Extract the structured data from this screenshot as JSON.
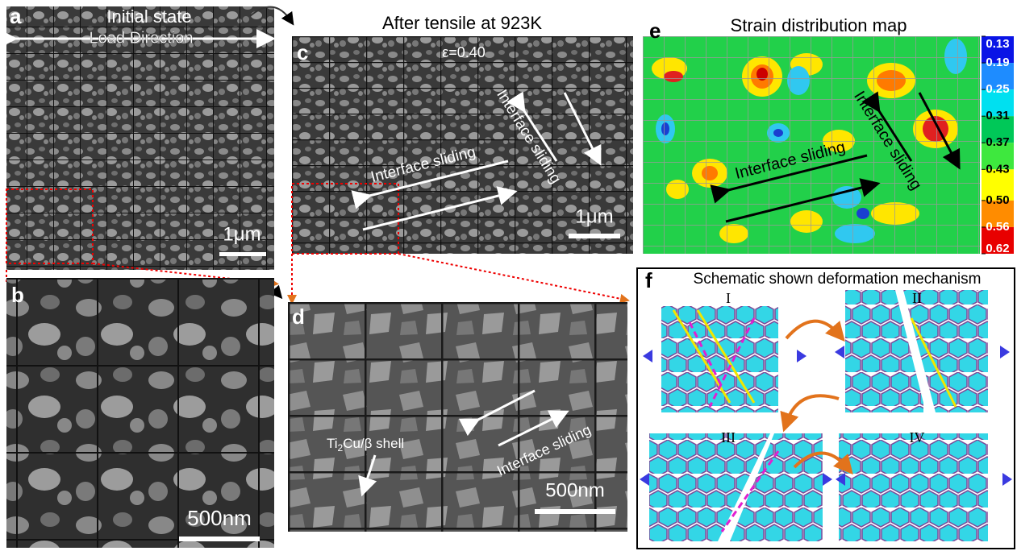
{
  "a": {
    "label": "a",
    "title": "Initial state",
    "arrow": "Load Direction",
    "scale": "1μm"
  },
  "b": {
    "label": "b",
    "scale": "500nm"
  },
  "c": {
    "label": "c",
    "title": "After tensile at 923K",
    "strain": "ε=0.40",
    "annotations": [
      "Interface sliding",
      "Interface sliding"
    ],
    "scale": "1μm"
  },
  "d": {
    "label": "d",
    "phase": {
      "parts": [
        "Ti",
        "2",
        "Cu/β shell"
      ]
    },
    "annotation": "Interface sliding",
    "scale": "500nm"
  },
  "e": {
    "label": "e",
    "title": "Strain distribution map",
    "annotations": [
      "Interface sliding",
      "Interface sliding"
    ],
    "colorbar_ticks": [
      0.13,
      0.19,
      0.25,
      0.31,
      0.37,
      0.43,
      0.5,
      0.56,
      0.62
    ],
    "colorbar_labels": [
      "0.13",
      "0.19",
      "0.25",
      "0.31",
      "0.37",
      "0.43",
      "0.50",
      "0.56",
      "0.62"
    ]
  },
  "f": {
    "label": "f",
    "title": "Schematic shown deformation mechanism",
    "stages": [
      "I",
      "II",
      "III",
      "IV"
    ]
  }
}
